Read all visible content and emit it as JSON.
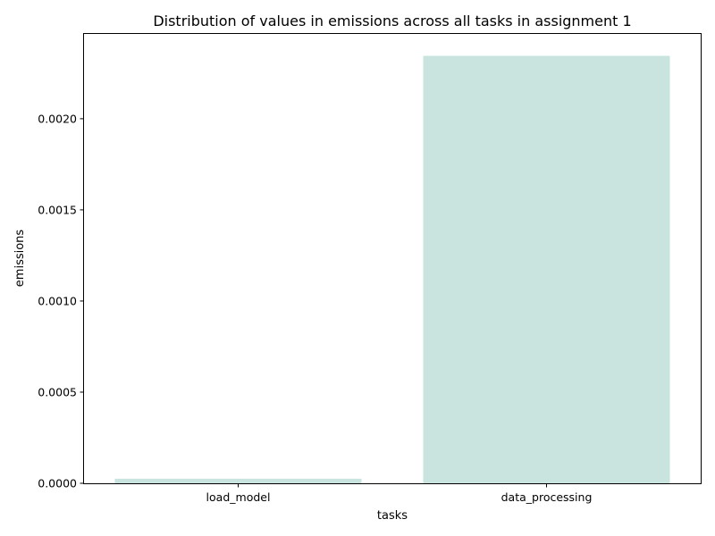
{
  "chart_data": {
    "type": "bar",
    "title": "Distribution of values in emissions across all tasks in assignment 1",
    "xlabel": "tasks",
    "ylabel": "emissions",
    "categories": [
      "load_model",
      "data_processing"
    ],
    "values": [
      2.5e-05,
      0.002345
    ],
    "ylim": [
      0,
      0.002465
    ],
    "yticks": [
      0,
      0.0005,
      0.001,
      0.0015,
      0.002
    ],
    "ytick_labels": [
      "0.0000",
      "0.0005",
      "0.0010",
      "0.0015",
      "0.0020"
    ],
    "bar_color": "#c9e4df",
    "grid": false,
    "legend": "none"
  }
}
